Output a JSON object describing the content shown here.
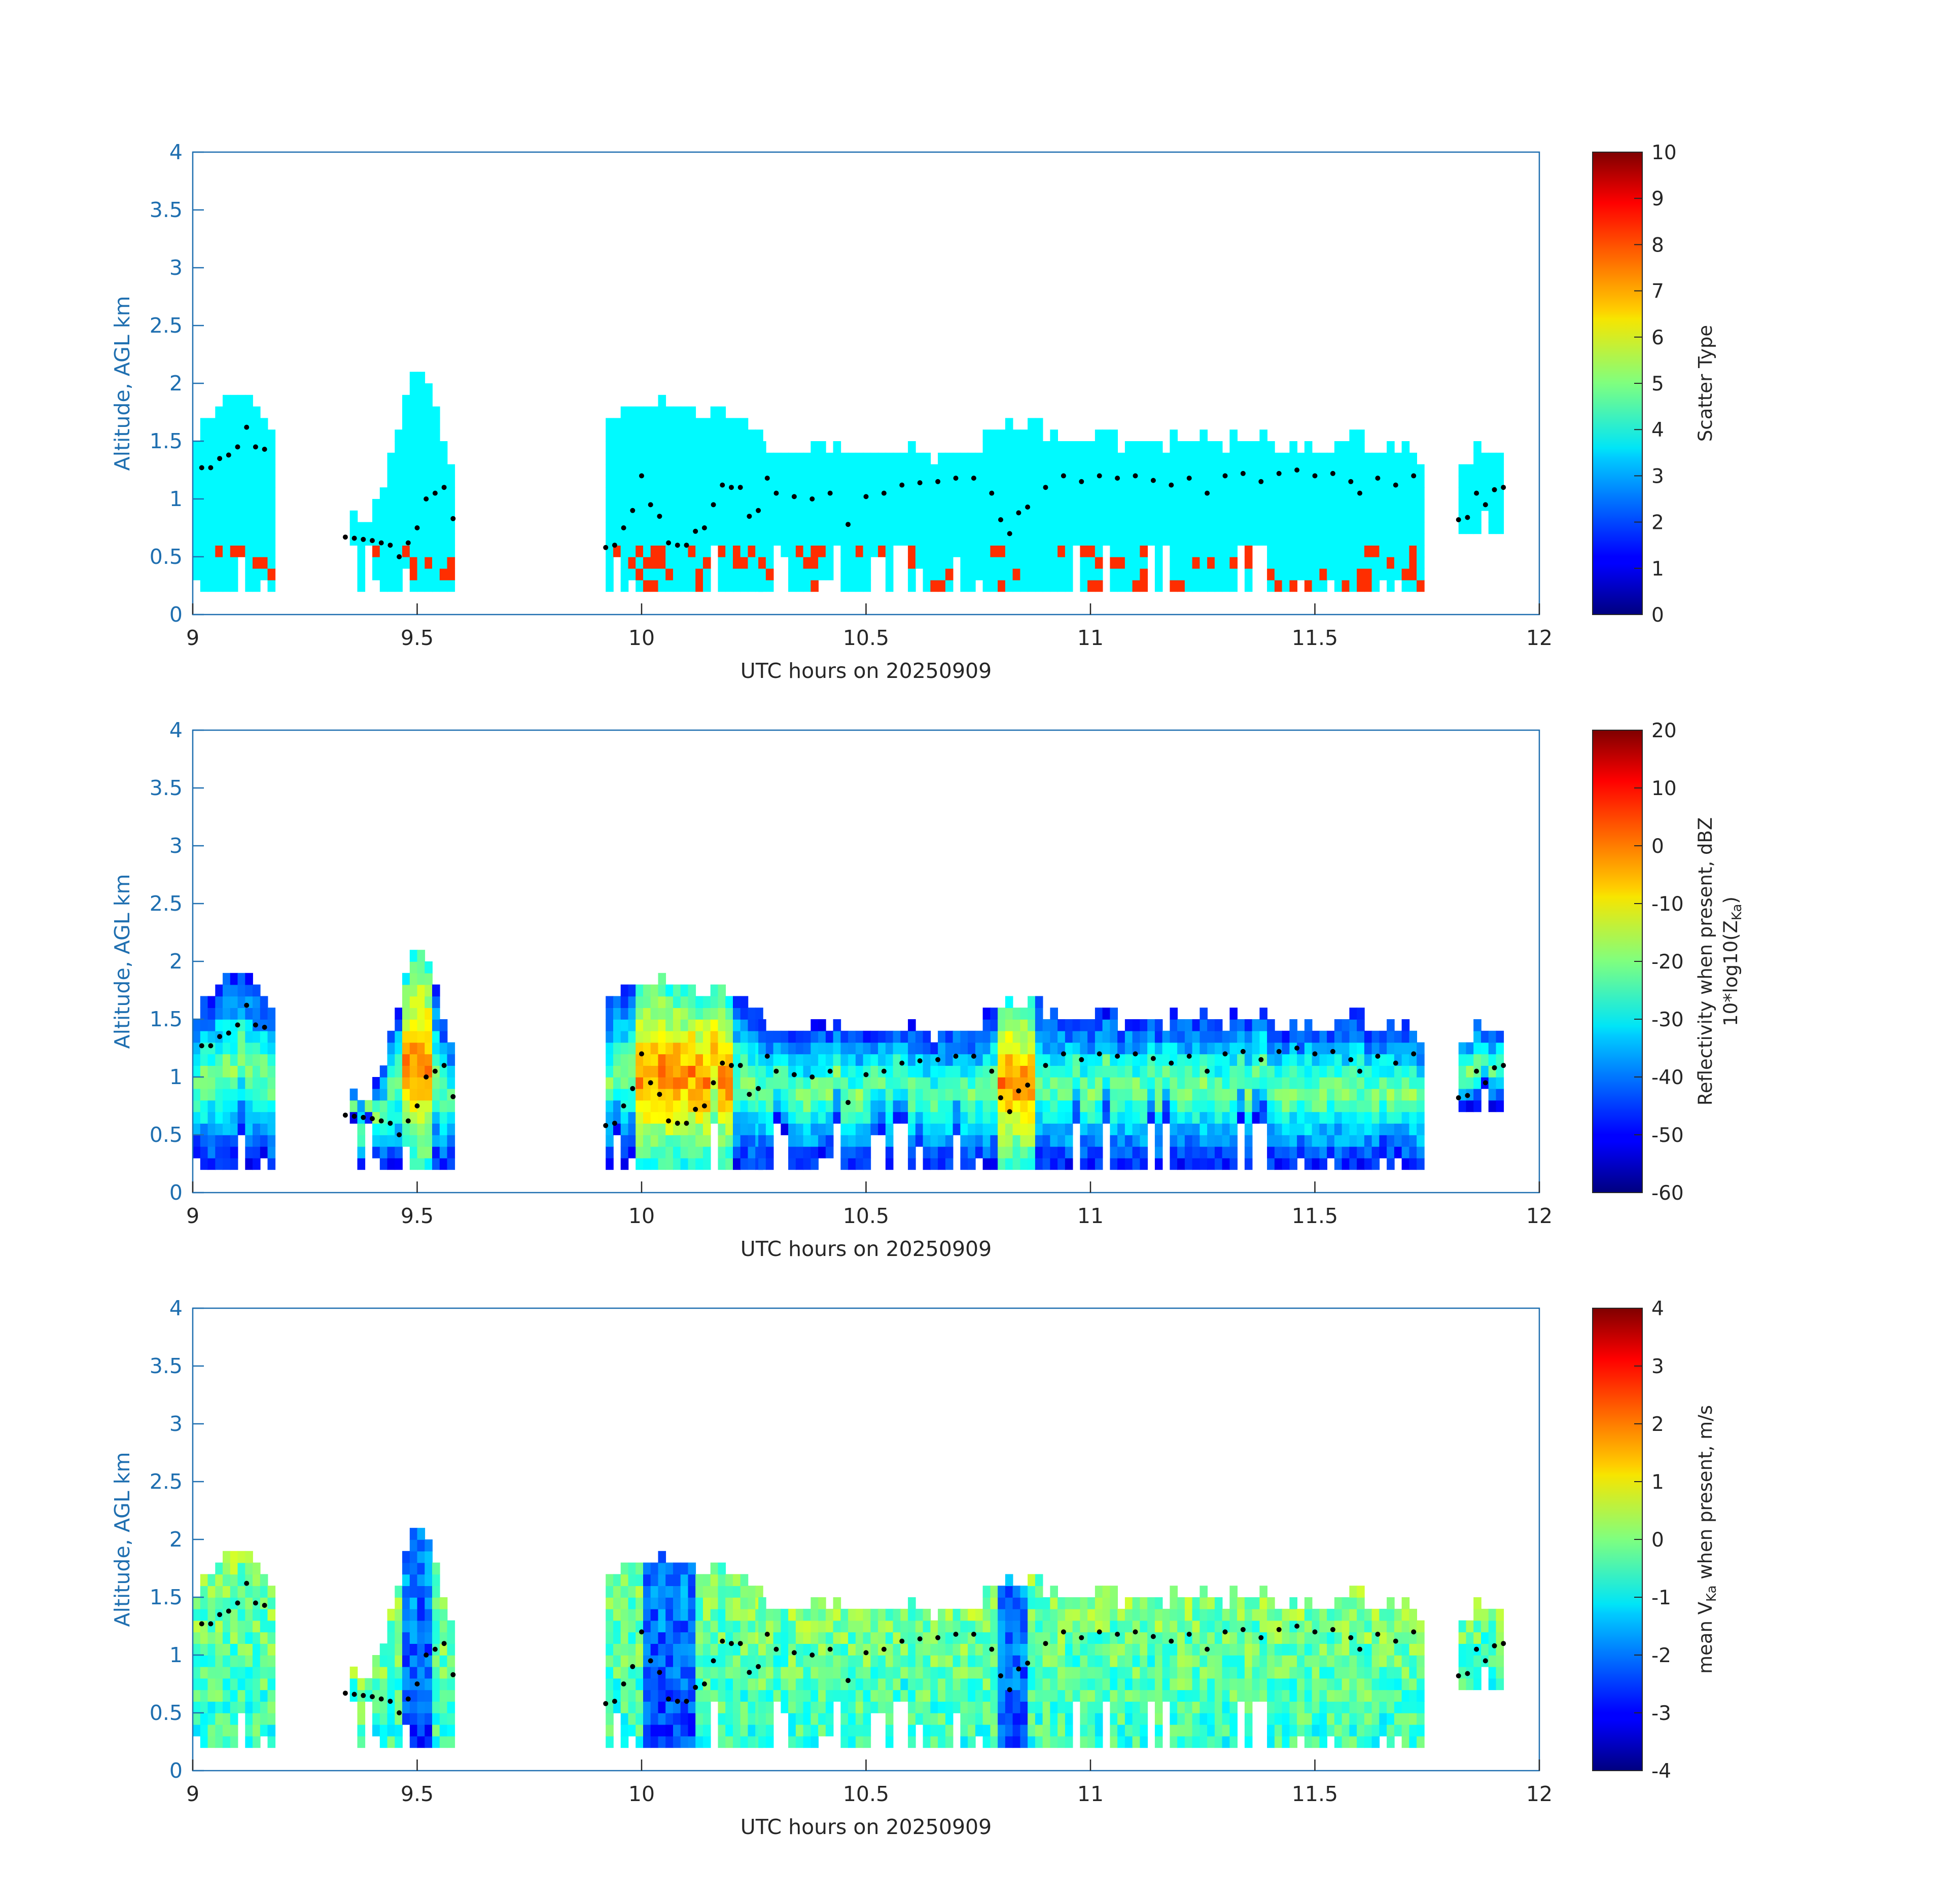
{
  "chart_data": [
    {
      "type": "heatmap",
      "xlabel": "UTC hours on 20250909",
      "ylabel": "Altitude, AGL km",
      "xlim": [
        9,
        12
      ],
      "ylim": [
        0,
        4
      ],
      "xticks": [
        "9",
        "9.5",
        "10",
        "10.5",
        "11",
        "11.5",
        "12"
      ],
      "yticks": [
        "0",
        "0.5",
        "1",
        "1.5",
        "2",
        "2.5",
        "3",
        "3.5",
        "4"
      ],
      "colorbar": {
        "label": "Scatter Type",
        "label2": "",
        "range": [
          0,
          10
        ],
        "ticks": [
          "0",
          "1",
          "2",
          "3",
          "4",
          "5",
          "6",
          "7",
          "8",
          "9",
          "10"
        ]
      },
      "dominant_value": 3.7,
      "secondary_value": 8.3
    },
    {
      "type": "heatmap",
      "xlabel": "UTC hours on 20250909",
      "ylabel": "Altitude, AGL km",
      "xlim": [
        9,
        12
      ],
      "ylim": [
        0,
        4
      ],
      "xticks": [
        "9",
        "9.5",
        "10",
        "10.5",
        "11",
        "11.5",
        "12"
      ],
      "yticks": [
        "0",
        "0.5",
        "1",
        "1.5",
        "2",
        "2.5",
        "3",
        "3.5",
        "4"
      ],
      "colorbar": {
        "label": "Reflectivity when present, dBZ",
        "label2": "10*log10(Z",
        "label2_sub": "Ka",
        "label2_end": ")",
        "range": [
          -60,
          20
        ],
        "ticks": [
          "-60",
          "-50",
          "-40",
          "-30",
          "-20",
          "-10",
          "0",
          "10",
          "20"
        ]
      }
    },
    {
      "type": "heatmap",
      "xlabel": "UTC hours on 20250909",
      "ylabel": "Altitude, AGL km",
      "xlim": [
        9,
        12
      ],
      "ylim": [
        0,
        4
      ],
      "xticks": [
        "9",
        "9.5",
        "10",
        "10.5",
        "11",
        "11.5",
        "12"
      ],
      "yticks": [
        "0",
        "0.5",
        "1",
        "1.5",
        "2",
        "2.5",
        "3",
        "3.5",
        "4"
      ],
      "colorbar": {
        "label": "mean V",
        "label_sub": "Ka",
        "label_end": " when present, m/s",
        "range": [
          -4,
          4
        ],
        "ticks": [
          "-4",
          "-3",
          "-2",
          "-1",
          "0",
          "1",
          "2",
          "3",
          "4"
        ]
      }
    }
  ],
  "cloud_segments": [
    {
      "x0": 9.0,
      "x1": 9.18,
      "top": [
        1.55,
        1.7,
        1.85,
        1.9,
        1.8,
        1.7,
        1.75,
        1.5
      ],
      "base": 0.2
    },
    {
      "x0": 9.35,
      "x1": 9.58,
      "top": [
        0.85,
        0.8,
        1.1,
        1.55,
        2.0,
        2.0,
        1.55,
        1.05
      ],
      "base": 0.2
    },
    {
      "x0": 9.92,
      "x1": 10.26,
      "top": [
        1.65,
        1.75,
        1.8,
        1.8,
        1.75,
        1.7,
        1.6,
        1.45
      ],
      "base": 0.2
    },
    {
      "x0": 10.26,
      "x1": 10.76,
      "top": [
        1.4,
        1.38,
        1.36,
        1.35,
        1.38,
        1.36,
        1.35,
        1.32
      ],
      "base": 0.2
    },
    {
      "x0": 10.76,
      "x1": 11.73,
      "top": [
        1.6,
        1.65,
        1.45,
        1.45,
        1.42,
        1.45,
        1.45,
        1.45,
        1.42,
        1.45,
        1.45,
        1.35
      ],
      "base": 0.2
    },
    {
      "x0": 11.82,
      "x1": 11.91,
      "top": [
        1.25,
        1.4,
        1.45,
        1.35
      ],
      "base": 0.7
    }
  ],
  "cloud_base_dots": [
    [
      9.02,
      1.27
    ],
    [
      9.04,
      1.27
    ],
    [
      9.06,
      1.35
    ],
    [
      9.08,
      1.38
    ],
    [
      9.1,
      1.45
    ],
    [
      9.12,
      1.62
    ],
    [
      9.14,
      1.45
    ],
    [
      9.16,
      1.43
    ],
    [
      9.34,
      0.67
    ],
    [
      9.36,
      0.66
    ],
    [
      9.38,
      0.65
    ],
    [
      9.4,
      0.64
    ],
    [
      9.42,
      0.62
    ],
    [
      9.44,
      0.6
    ],
    [
      9.46,
      0.5
    ],
    [
      9.48,
      0.62
    ],
    [
      9.5,
      0.75
    ],
    [
      9.52,
      1.0
    ],
    [
      9.54,
      1.05
    ],
    [
      9.56,
      1.1
    ],
    [
      9.58,
      0.83
    ],
    [
      9.92,
      0.58
    ],
    [
      9.94,
      0.6
    ],
    [
      9.96,
      0.75
    ],
    [
      9.98,
      0.9
    ],
    [
      10.0,
      1.2
    ],
    [
      10.02,
      0.95
    ],
    [
      10.04,
      0.85
    ],
    [
      10.06,
      0.62
    ],
    [
      10.08,
      0.6
    ],
    [
      10.1,
      0.6
    ],
    [
      10.12,
      0.72
    ],
    [
      10.14,
      0.75
    ],
    [
      10.16,
      0.95
    ],
    [
      10.18,
      1.12
    ],
    [
      10.2,
      1.1
    ],
    [
      10.22,
      1.1
    ],
    [
      10.24,
      0.85
    ],
    [
      10.26,
      0.9
    ],
    [
      10.28,
      1.18
    ],
    [
      10.3,
      1.05
    ],
    [
      10.34,
      1.02
    ],
    [
      10.38,
      1.0
    ],
    [
      10.42,
      1.05
    ],
    [
      10.46,
      0.78
    ],
    [
      10.5,
      1.02
    ],
    [
      10.54,
      1.05
    ],
    [
      10.58,
      1.12
    ],
    [
      10.62,
      1.14
    ],
    [
      10.66,
      1.15
    ],
    [
      10.7,
      1.18
    ],
    [
      10.74,
      1.18
    ],
    [
      10.78,
      1.05
    ],
    [
      10.8,
      0.82
    ],
    [
      10.82,
      0.7
    ],
    [
      10.84,
      0.88
    ],
    [
      10.86,
      0.93
    ],
    [
      10.9,
      1.1
    ],
    [
      10.94,
      1.2
    ],
    [
      10.98,
      1.15
    ],
    [
      11.02,
      1.2
    ],
    [
      11.06,
      1.18
    ],
    [
      11.1,
      1.2
    ],
    [
      11.14,
      1.16
    ],
    [
      11.18,
      1.12
    ],
    [
      11.22,
      1.18
    ],
    [
      11.26,
      1.05
    ],
    [
      11.3,
      1.2
    ],
    [
      11.34,
      1.22
    ],
    [
      11.38,
      1.15
    ],
    [
      11.42,
      1.22
    ],
    [
      11.46,
      1.25
    ],
    [
      11.5,
      1.2
    ],
    [
      11.54,
      1.22
    ],
    [
      11.58,
      1.15
    ],
    [
      11.6,
      1.05
    ],
    [
      11.64,
      1.18
    ],
    [
      11.68,
      1.12
    ],
    [
      11.72,
      1.2
    ],
    [
      11.82,
      0.82
    ],
    [
      11.84,
      0.84
    ],
    [
      11.86,
      1.05
    ],
    [
      11.88,
      0.95
    ],
    [
      11.9,
      1.08
    ],
    [
      11.92,
      1.1
    ]
  ]
}
